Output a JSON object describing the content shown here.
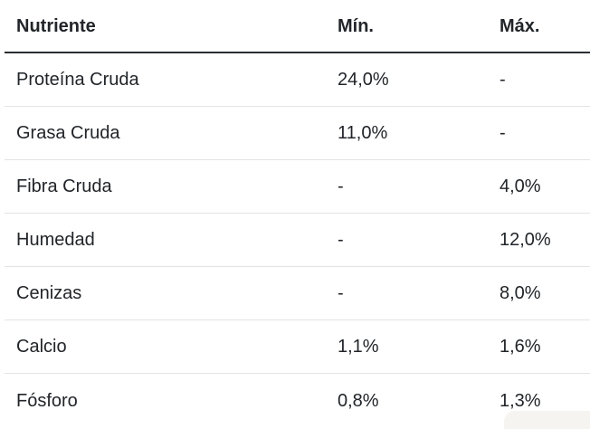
{
  "table": {
    "headers": [
      "Nutriente",
      "Mín.",
      "Máx."
    ],
    "rows": [
      {
        "nutrient": "Proteína Cruda",
        "min": "24,0%",
        "max": "-"
      },
      {
        "nutrient": "Grasa Cruda",
        "min": "11,0%",
        "max": "-"
      },
      {
        "nutrient": "Fibra Cruda",
        "min": "-",
        "max": "4,0%"
      },
      {
        "nutrient": "Humedad",
        "min": "-",
        "max": "12,0%"
      },
      {
        "nutrient": "Cenizas",
        "min": "-",
        "max": "8,0%"
      },
      {
        "nutrient": "Calcio",
        "min": "1,1%",
        "max": "1,6%"
      },
      {
        "nutrient": "Fósforo",
        "min": "0,8%",
        "max": "1,3%"
      }
    ]
  },
  "colors": {
    "text": "#212529",
    "header_rule": "#2b2f33",
    "row_rule": "#e3e3e3",
    "background": "#ffffff",
    "corner_shade": "#f6f4f1"
  }
}
